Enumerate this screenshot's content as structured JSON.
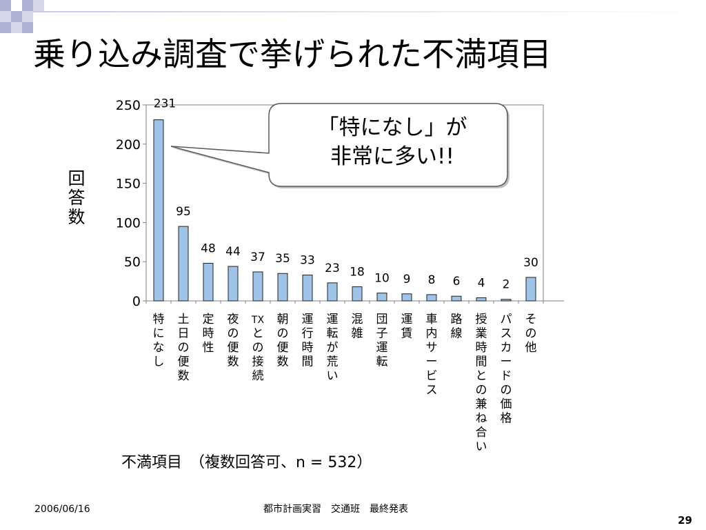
{
  "slide": {
    "title": "乗り込み調査で挙げられた不満項目",
    "accent_color": "#c8cbe0",
    "corner_colors": [
      "#aeb2d4",
      "#d6d9ec"
    ]
  },
  "chart_data": {
    "type": "bar",
    "title": "",
    "ylabel": "回答数",
    "xlabel": "不満項目　（複数回答可、n = 532）",
    "ylim": [
      0,
      250
    ],
    "yticks": [
      0,
      50,
      100,
      150,
      200,
      250
    ],
    "grid": false,
    "bar_color": "#9dc3e6",
    "categories": [
      "特になし",
      "土日の便数",
      "定時性",
      "夜の便数",
      "TXとの接続",
      "朝の便数",
      "運行時間",
      "運転が荒い",
      "混雑",
      "団子運転",
      "運賃",
      "車内サービス",
      "路線",
      "授業時間との兼ね合い",
      "パスカードの価格",
      "その他"
    ],
    "values": [
      231,
      95,
      48,
      44,
      37,
      35,
      33,
      23,
      18,
      10,
      9,
      8,
      6,
      4,
      2,
      30
    ],
    "annotation": {
      "lines": [
        "「特になし」が",
        "非常に多い!!"
      ],
      "target_category": "特になし"
    }
  },
  "footer": {
    "date": "2006/06/16",
    "center": "都市計画実習　交通班　最終発表",
    "page": "29"
  }
}
